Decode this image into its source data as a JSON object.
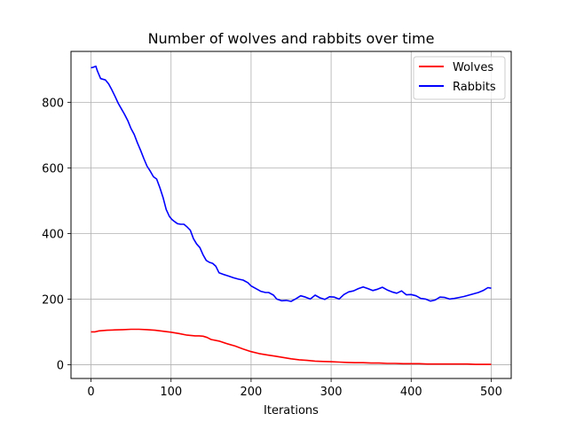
{
  "chart_data": {
    "type": "line",
    "title": "Number of wolves and rabbits over time",
    "xlabel": "Iterations",
    "ylabel": "",
    "xlim": [
      -25,
      525
    ],
    "ylim": [
      -42,
      955
    ],
    "xticks": [
      0,
      100,
      200,
      300,
      400,
      500
    ],
    "yticks": [
      0,
      200,
      400,
      600,
      800
    ],
    "grid": true,
    "legend_position": "top-right",
    "series": [
      {
        "name": "Wolves",
        "color": "#ff0000",
        "x": [
          0,
          5,
          10,
          20,
          30,
          40,
          50,
          60,
          70,
          80,
          90,
          100,
          110,
          120,
          130,
          135,
          140,
          145,
          150,
          160,
          170,
          180,
          190,
          200,
          210,
          220,
          230,
          240,
          250,
          260,
          270,
          280,
          290,
          300,
          310,
          320,
          330,
          340,
          350,
          360,
          370,
          380,
          390,
          400,
          410,
          420,
          430,
          440,
          450,
          460,
          470,
          480,
          490,
          500
        ],
        "y": [
          100,
          100,
          103,
          105,
          106,
          107,
          108,
          108,
          107,
          105,
          102,
          99,
          95,
          90,
          88,
          88,
          87,
          83,
          77,
          72,
          64,
          57,
          48,
          40,
          34,
          30,
          26,
          22,
          18,
          15,
          13,
          11,
          10,
          9,
          8,
          7,
          6,
          6,
          5,
          5,
          4,
          4,
          3,
          3,
          3,
          2,
          2,
          2,
          2,
          2,
          2,
          1,
          1,
          1
        ]
      },
      {
        "name": "Rabbits",
        "color": "#0000ff",
        "x": [
          0,
          3,
          6,
          8,
          12,
          18,
          22,
          26,
          30,
          34,
          38,
          42,
          46,
          50,
          54,
          58,
          62,
          66,
          70,
          74,
          78,
          82,
          86,
          90,
          94,
          98,
          101,
          104,
          108,
          112,
          116,
          120,
          124,
          128,
          132,
          136,
          140,
          144,
          148,
          152,
          156,
          160,
          166,
          172,
          178,
          184,
          190,
          196,
          200,
          206,
          212,
          218,
          222,
          228,
          232,
          238,
          244,
          250,
          256,
          262,
          268,
          274,
          280,
          286,
          292,
          298,
          304,
          310,
          316,
          322,
          328,
          334,
          340,
          346,
          352,
          358,
          364,
          370,
          376,
          382,
          388,
          394,
          400,
          406,
          412,
          418,
          424,
          430,
          436,
          442,
          448,
          454,
          460,
          466,
          472,
          478,
          484,
          490,
          496,
          500
        ],
        "y": [
          905,
          907,
          910,
          895,
          872,
          868,
          856,
          838,
          818,
          797,
          780,
          763,
          744,
          720,
          702,
          676,
          653,
          628,
          605,
          590,
          573,
          566,
          540,
          510,
          473,
          452,
          443,
          437,
          430,
          428,
          428,
          420,
          410,
          384,
          368,
          357,
          335,
          318,
          312,
          309,
          300,
          280,
          275,
          270,
          265,
          261,
          258,
          250,
          240,
          232,
          224,
          220,
          220,
          212,
          200,
          195,
          196,
          193,
          201,
          210,
          206,
          200,
          212,
          204,
          199,
          207,
          206,
          200,
          214,
          222,
          225,
          232,
          237,
          232,
          226,
          230,
          236,
          228,
          222,
          218,
          225,
          213,
          214,
          210,
          202,
          200,
          194,
          197,
          206,
          205,
          200,
          202,
          205,
          208,
          212,
          216,
          220,
          226,
          235,
          233
        ]
      }
    ]
  }
}
